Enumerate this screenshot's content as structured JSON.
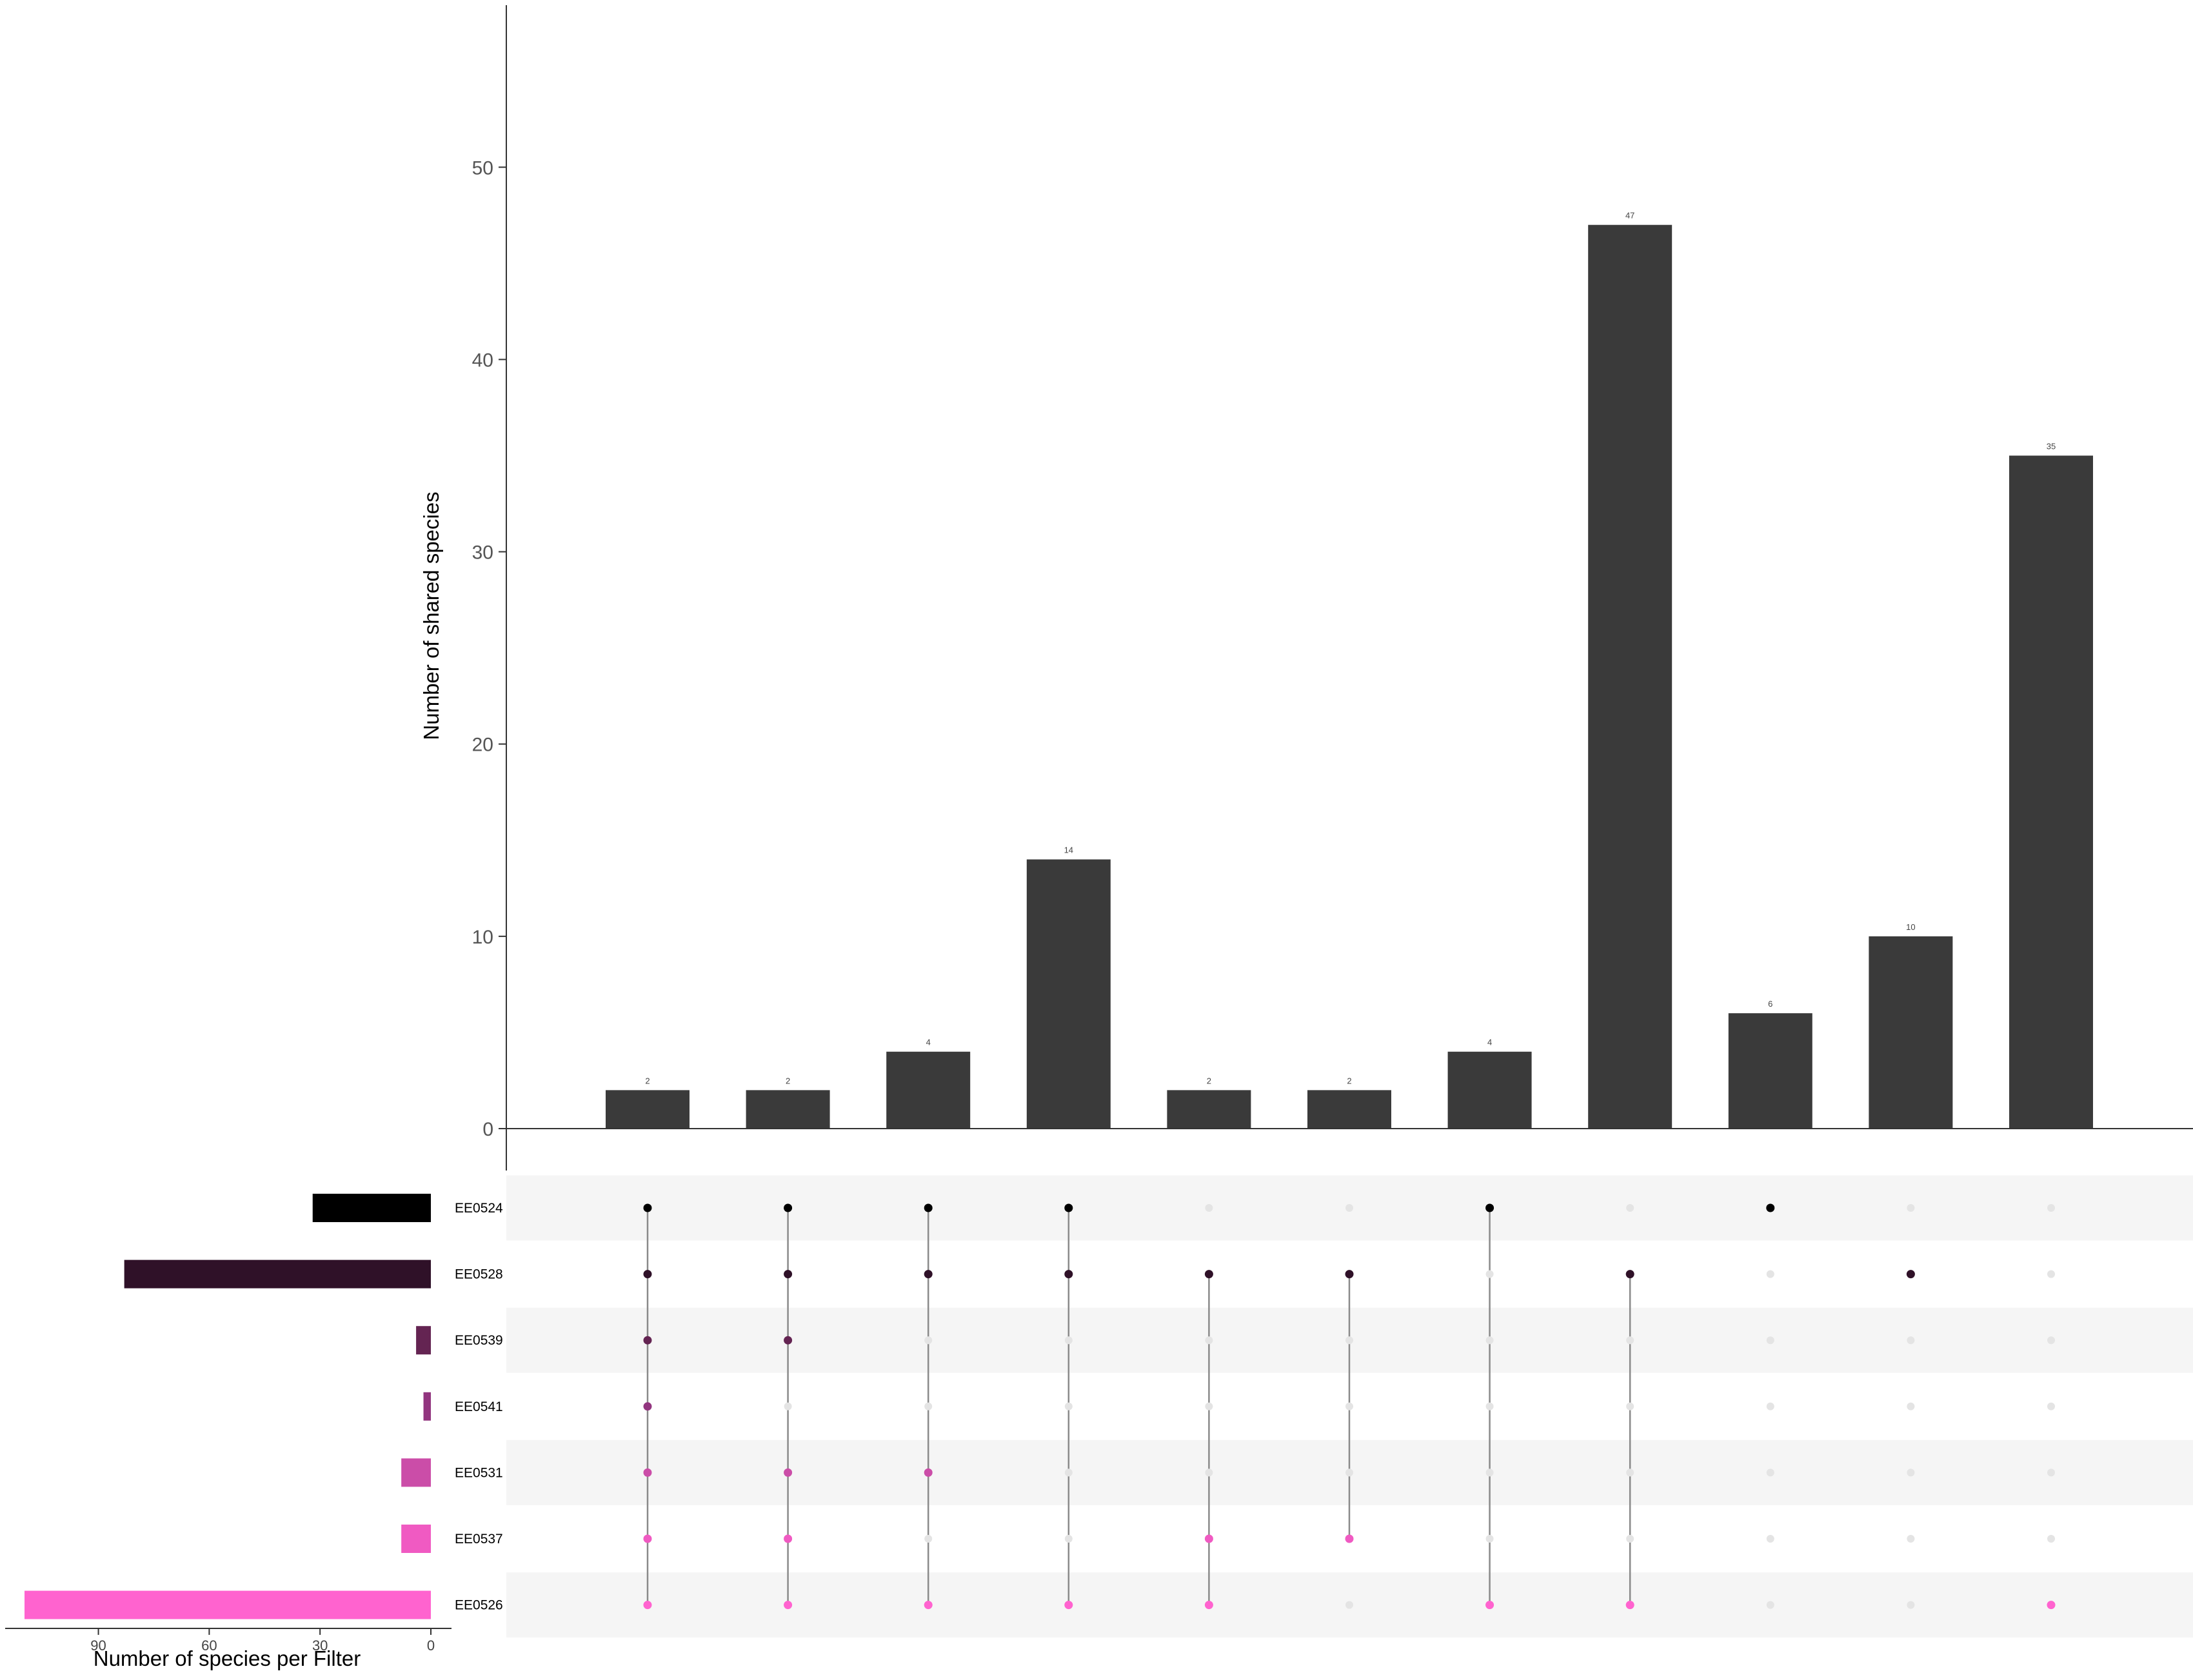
{
  "chart_data": {
    "type": "upset",
    "intersection_axis": {
      "label": "Number of shared species",
      "ylim": [
        0,
        54
      ],
      "ticks": [
        0,
        10,
        20,
        30,
        40,
        50
      ]
    },
    "set_size_axis": {
      "label": "Number of species per Filter",
      "ticks": [
        90,
        60,
        30,
        0
      ],
      "xlim_max": 110
    },
    "sets": [
      {
        "name": "EE0524",
        "size": 32,
        "color": "#000000"
      },
      {
        "name": "EE0528",
        "size": 83,
        "color": "#2F1128"
      },
      {
        "name": "EE0539",
        "size": 4,
        "color": "#642452"
      },
      {
        "name": "EE0541",
        "size": 2,
        "color": "#92357F"
      },
      {
        "name": "EE0531",
        "size": 8,
        "color": "#CB4DA8"
      },
      {
        "name": "EE0537",
        "size": 8,
        "color": "#F05AC2"
      },
      {
        "name": "EE0526",
        "size": 110,
        "color": "#FF63CF"
      }
    ],
    "intersections": [
      {
        "value": 2,
        "label": "2",
        "members": [
          "EE0524",
          "EE0528",
          "EE0539",
          "EE0541",
          "EE0531",
          "EE0537",
          "EE0526"
        ]
      },
      {
        "value": 2,
        "label": "2",
        "members": [
          "EE0524",
          "EE0528",
          "EE0539",
          "EE0531",
          "EE0537",
          "EE0526"
        ]
      },
      {
        "value": 4,
        "label": "4",
        "members": [
          "EE0524",
          "EE0528",
          "EE0531",
          "EE0526"
        ]
      },
      {
        "value": 14,
        "label": "14",
        "members": [
          "EE0524",
          "EE0528",
          "EE0526"
        ]
      },
      {
        "value": 2,
        "label": "2",
        "members": [
          "EE0528",
          "EE0537",
          "EE0526"
        ]
      },
      {
        "value": 2,
        "label": "2",
        "members": [
          "EE0528",
          "EE0537"
        ]
      },
      {
        "value": 4,
        "label": "4",
        "members": [
          "EE0524",
          "EE0526"
        ]
      },
      {
        "value": 47,
        "label": "47",
        "members": [
          "EE0528",
          "EE0526"
        ]
      },
      {
        "value": 6,
        "label": "6",
        "members": [
          "EE0524"
        ]
      },
      {
        "value": 10,
        "label": "10",
        "members": [
          "EE0528"
        ]
      },
      {
        "value": 35,
        "label": "35",
        "members": [
          "EE0526"
        ]
      }
    ],
    "colors": {
      "bar": "#3a3a3a",
      "inactive_dot": "#e4e4e4",
      "connector": "#8a8a8a",
      "row_stripe": "#f5f5f5",
      "axis": "#333333"
    }
  }
}
